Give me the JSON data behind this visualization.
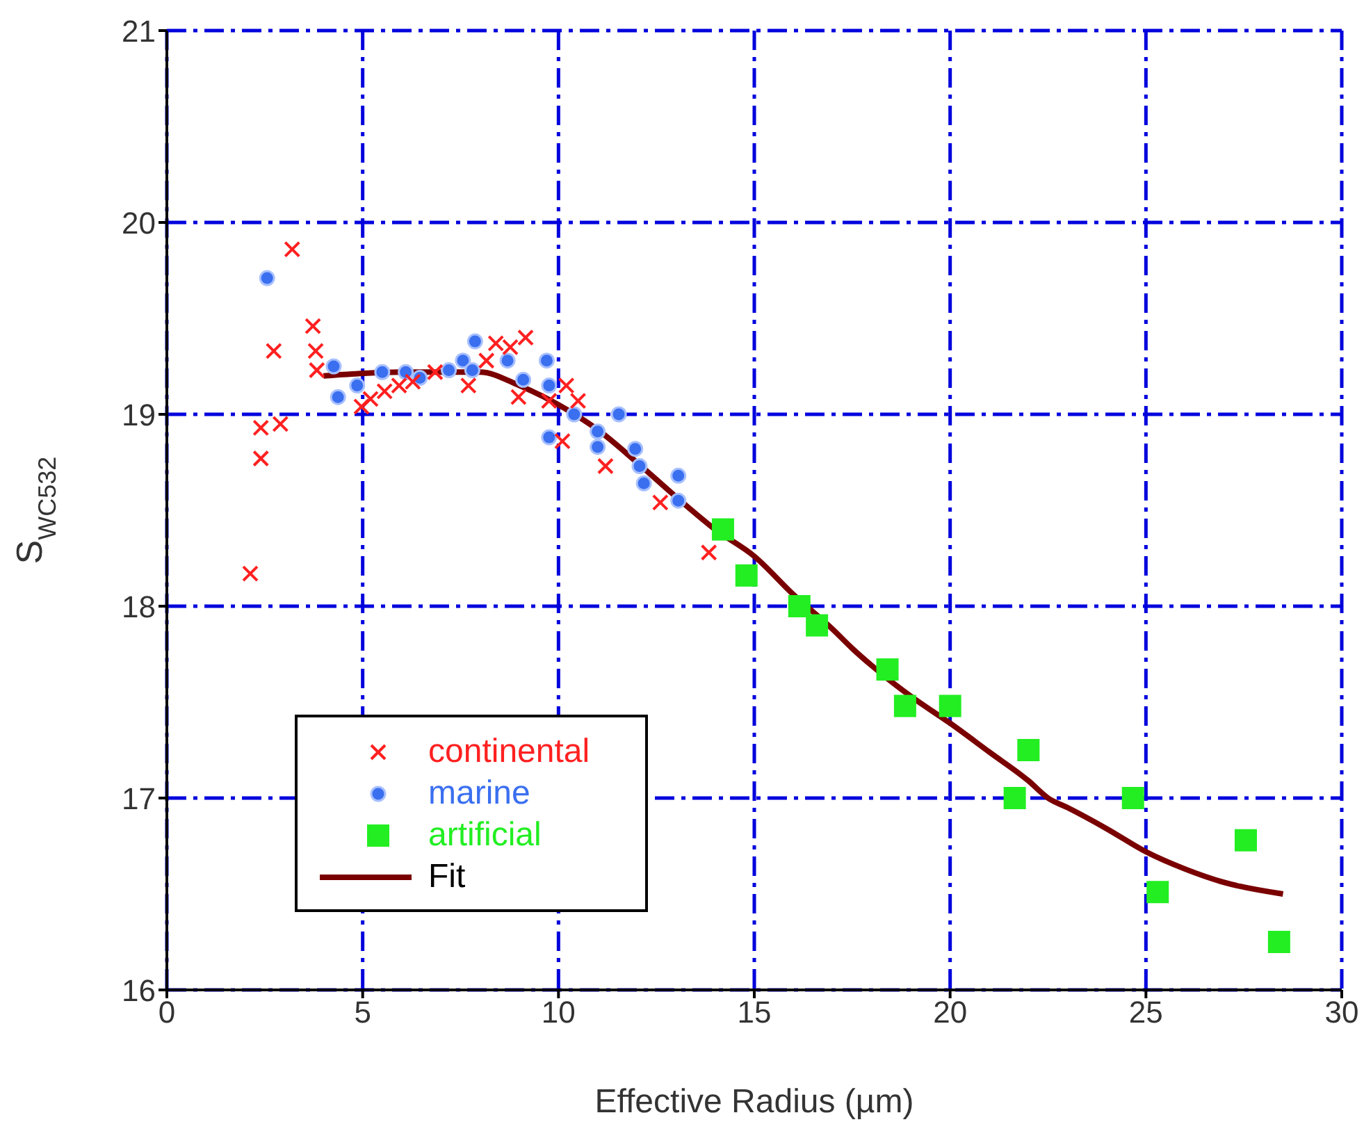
{
  "chart_data": {
    "type": "scatter",
    "xlabel": "Effective Radius (µm)",
    "ylabel": "S$_{WC532}$",
    "xlim": [
      0,
      30
    ],
    "xticks": [
      0,
      5,
      10,
      15,
      20,
      25,
      30
    ],
    "ylim": [
      16,
      21
    ],
    "yticks": [
      16,
      17,
      18,
      19,
      20,
      21
    ],
    "grid": true,
    "legend": "bottom left",
    "series": [
      {
        "name": "continental",
        "marker": "cross",
        "color": "#ff2020",
        "x": [
          3.2,
          2.73,
          3.73,
          3.8,
          3.83,
          2.4,
          2.9,
          2.4,
          2.13,
          5.2,
          5.56,
          4.97,
          5.93,
          6.28,
          6.85,
          7.7,
          8.4,
          8.77,
          9.16,
          8.98,
          8.16,
          10.2,
          10.5,
          10.1,
          11.2,
          12.6,
          13.84,
          9.76
        ],
        "values": [
          19.86,
          19.33,
          19.46,
          19.33,
          19.23,
          18.93,
          18.95,
          18.77,
          18.17,
          19.08,
          19.12,
          19.04,
          19.15,
          19.17,
          19.22,
          19.15,
          19.37,
          19.35,
          19.4,
          19.09,
          19.28,
          19.15,
          19.07,
          18.86,
          18.73,
          18.54,
          18.28,
          19.07
        ]
      },
      {
        "name": "marine",
        "marker": "circle",
        "color": "#3a6ff0",
        "x": [
          2.56,
          4.26,
          4.86,
          4.37,
          5.5,
          6.1,
          6.46,
          7.2,
          7.56,
          7.87,
          7.8,
          8.7,
          9.1,
          9.7,
          9.76,
          9.76,
          10.4,
          11.0,
          11.54,
          11.0,
          11.96,
          12.07,
          12.18,
          13.06,
          13.06
        ],
        "values": [
          19.71,
          19.25,
          19.15,
          19.09,
          19.22,
          19.22,
          19.19,
          19.23,
          19.28,
          19.38,
          19.23,
          19.28,
          19.18,
          19.28,
          19.15,
          18.88,
          19.0,
          18.91,
          19.0,
          18.83,
          18.82,
          18.73,
          18.64,
          18.68,
          18.55
        ]
      },
      {
        "name": "artificial",
        "marker": "square",
        "color": "#22ee22",
        "x": [
          14.2,
          14.8,
          16.15,
          16.6,
          18.4,
          18.85,
          20.0,
          22.0,
          21.65,
          24.67,
          27.55,
          25.3,
          28.4
        ],
        "values": [
          18.4,
          18.16,
          18.0,
          17.9,
          17.67,
          17.48,
          17.48,
          17.25,
          17.0,
          17.0,
          16.78,
          16.51,
          16.25
        ]
      },
      {
        "name": "Fit",
        "type": "line",
        "marker": "none",
        "color": "#7a0000",
        "x": [
          4,
          6,
          8,
          9,
          10,
          11,
          12,
          13,
          14,
          15,
          16,
          17,
          17.5,
          18,
          19,
          20,
          21,
          22,
          22.5,
          23,
          24,
          25,
          26,
          27,
          28.5
        ],
        "values": [
          19.2,
          19.22,
          19.22,
          19.15,
          19.05,
          18.92,
          18.75,
          18.57,
          18.4,
          18.26,
          18.06,
          17.88,
          17.78,
          17.69,
          17.53,
          17.39,
          17.24,
          17.09,
          17.0,
          16.95,
          16.84,
          16.72,
          16.63,
          16.56,
          16.5
        ]
      }
    ]
  }
}
